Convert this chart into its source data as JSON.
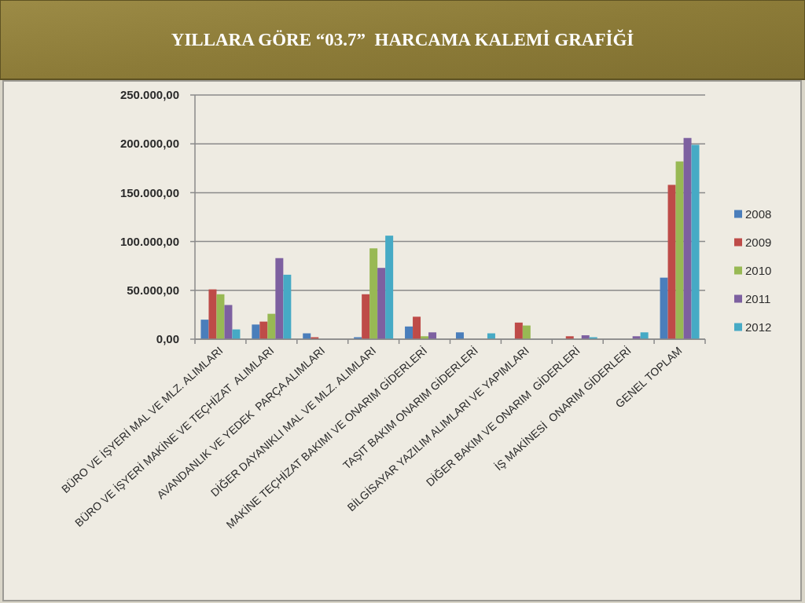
{
  "chart_data": {
    "type": "bar",
    "title": "YILLARA GÖRE “03.7”  HARCAMA KALEMİ GRAFİĞİ",
    "categories": [
      "BÜRO VE İŞYERİ MAL VE MLZ. ALIMLARI",
      "BÜRO VE İŞYERİ MAKİNE VE TEÇHİZAT  ALIMLARI",
      "AVANDANLIK VE YEDEK  PARÇA ALIMLARI",
      "DİĞER DAYANIKLI MAL VE MLZ. ALIMLARI",
      "MAKİNE TEÇHİZAT BAKIMI VE ONARIM GİDERLERİ",
      "TAŞIT BAKIM ONARIM GİDERLERİ",
      "BİLGİSAYAR YAZILIM ALIMLARI VE YAPIMLARI",
      "DİĞER BAKIM VE ONARIM  GİDERLERİ",
      "İŞ MAKİNESİ  ONARIM GİDERLERİ",
      "GENEL TOPLAM"
    ],
    "series": [
      {
        "name": "2008",
        "color": "#4a7ebb",
        "values": [
          20000,
          15000,
          6000,
          2000,
          13000,
          7000,
          null,
          null,
          null,
          63000
        ]
      },
      {
        "name": "2009",
        "color": "#be4b48",
        "values": [
          51000,
          18000,
          2000,
          46000,
          23000,
          null,
          17000,
          3000,
          null,
          158000
        ]
      },
      {
        "name": "2010",
        "color": "#98b954",
        "values": [
          46000,
          26000,
          null,
          93000,
          3000,
          null,
          14000,
          null,
          null,
          182000
        ]
      },
      {
        "name": "2011",
        "color": "#7d60a0",
        "values": [
          35000,
          83000,
          null,
          73000,
          7000,
          null,
          null,
          4000,
          3000,
          206000
        ]
      },
      {
        "name": "2012",
        "color": "#46aac5",
        "values": [
          10000,
          66000,
          null,
          106000,
          null,
          6000,
          null,
          2000,
          7000,
          199000
        ]
      }
    ],
    "ylim": [
      0,
      250000
    ],
    "yticks": [
      {
        "value": 0,
        "label": "0,00"
      },
      {
        "value": 50000,
        "label": "50.000,00"
      },
      {
        "value": 100000,
        "label": "100.000,00"
      },
      {
        "value": 150000,
        "label": "150.000,00"
      },
      {
        "value": 200000,
        "label": "200.000,00"
      },
      {
        "value": 250000,
        "label": "250.000,00"
      }
    ],
    "grid": "y",
    "legend": "right"
  }
}
